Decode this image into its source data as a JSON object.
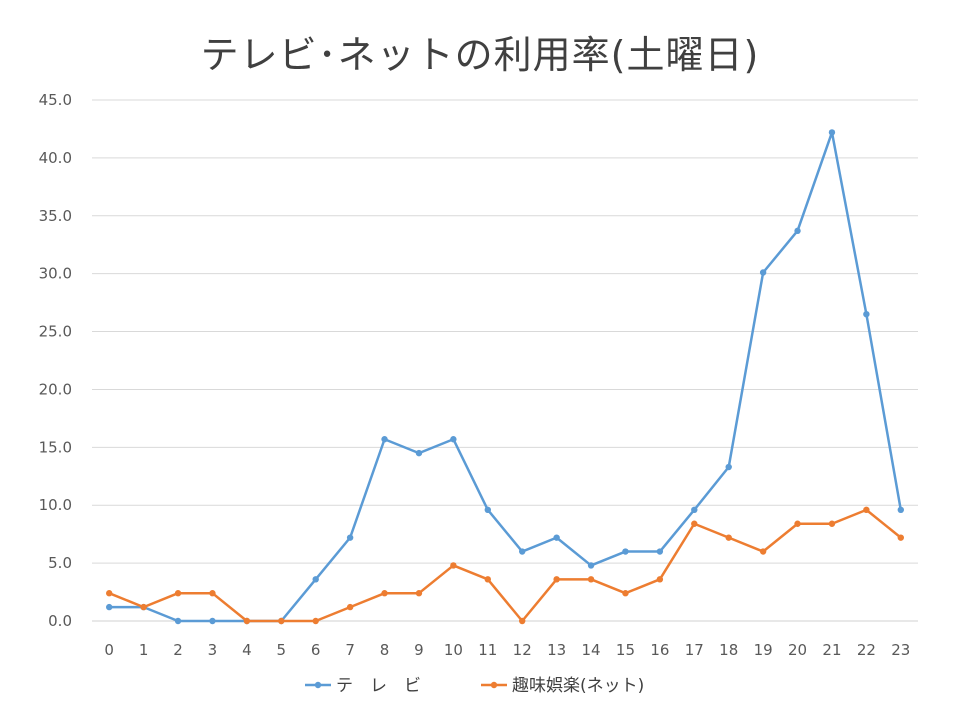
{
  "chart_data": {
    "type": "line",
    "title": "テレビ･ネットの利用率(土曜日)",
    "xlabel": "",
    "ylabel": "",
    "categories": [
      "0",
      "1",
      "2",
      "3",
      "4",
      "5",
      "6",
      "7",
      "8",
      "9",
      "10",
      "11",
      "12",
      "13",
      "14",
      "15",
      "16",
      "17",
      "18",
      "19",
      "20",
      "21",
      "22",
      "23"
    ],
    "ylim": [
      0,
      45
    ],
    "y_ticks": [
      "0.0",
      "5.0",
      "10.0",
      "15.0",
      "20.0",
      "25.0",
      "30.0",
      "35.0",
      "40.0",
      "45.0"
    ],
    "y_grid": true,
    "legend_position": "bottom",
    "series": [
      {
        "name": "テ　レ　ビ",
        "color": "#5B9BD5",
        "values": [
          1.2,
          1.2,
          0.0,
          0.0,
          0.0,
          0.0,
          3.6,
          7.2,
          15.7,
          14.5,
          15.7,
          9.6,
          6.0,
          7.2,
          4.8,
          6.0,
          6.0,
          9.6,
          13.3,
          30.1,
          33.7,
          42.2,
          26.5,
          9.6
        ]
      },
      {
        "name": "趣味娯楽(ネット)",
        "color": "#ED7D31",
        "values": [
          2.4,
          1.2,
          2.4,
          2.4,
          0.0,
          0.0,
          0.0,
          1.2,
          2.4,
          2.4,
          4.8,
          3.6,
          0.0,
          3.6,
          3.6,
          2.4,
          3.6,
          8.4,
          7.2,
          6.0,
          8.4,
          8.4,
          9.6,
          7.2
        ]
      }
    ]
  }
}
